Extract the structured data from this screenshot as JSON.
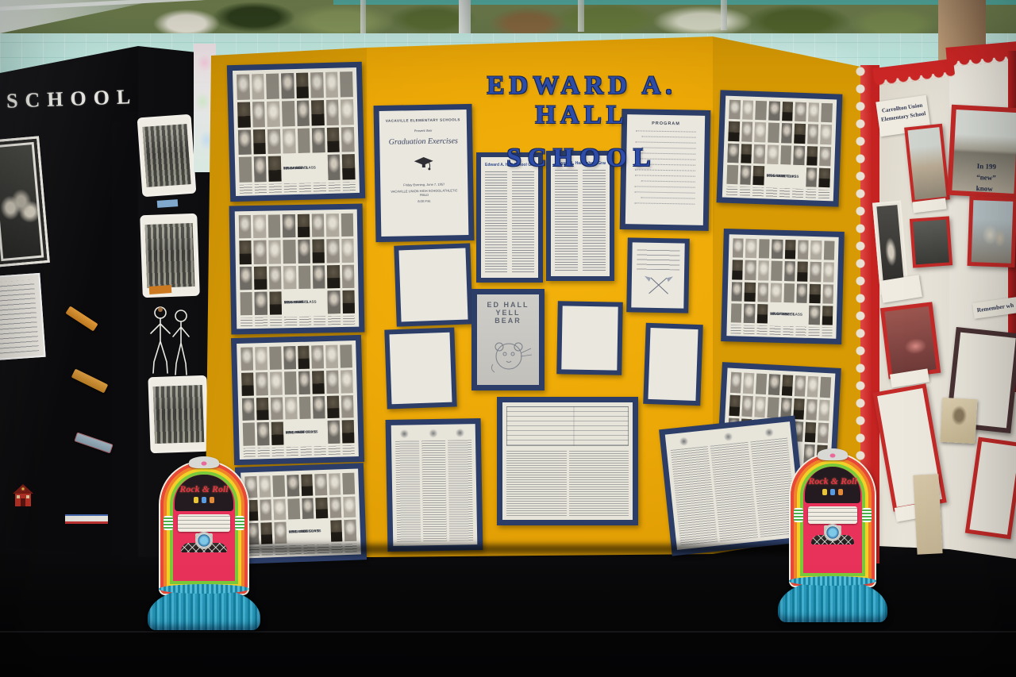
{
  "title": {
    "line1": "EDWARD A. HALL",
    "line2": "SCHOOL"
  },
  "left_board": {
    "heading": "SCHOOL"
  },
  "grad_program": {
    "header": "VACAVILLE ELEMENTARY SCHOOLS",
    "sub": "Present their",
    "script": "Graduation Exercises",
    "foot1": "Friday Evening, June 7, 1957",
    "foot2": "VACAVILLE UNION HIGH SCHOOL ATHLETIC FIELD",
    "foot3": "8:00 P.M."
  },
  "grad_lists": {
    "title": "Edward A. Hall School Graduates"
  },
  "program_page": {
    "title": "PROGRAM"
  },
  "bear_drawing": {
    "line1": "ED HALL",
    "line2": "YELL BEAR"
  },
  "right_board": {
    "school_label_1": "Carrollton Union",
    "school_label_2": "Elementary School",
    "new_text_1": "In 199",
    "new_text_2": "“new”",
    "new_text_3": "know",
    "remember_label": "Remember wh"
  },
  "jukebox": {
    "label": "Rock & Roll"
  },
  "class_sheets": [
    {
      "cap1": "MR. McDOW'S",
      "cap2": "5th GRADE CLASS",
      "cap3": "1956 - 1957",
      "rows": 4,
      "cols": 8,
      "capRow": 3,
      "capCol": 3,
      "capSpan": 3
    },
    {
      "cap1": "MISS ROWE'S",
      "cap2": "5th GRADE CLASS",
      "cap3": "1956 - 1957",
      "rows": 4,
      "cols": 8,
      "capRow": 3,
      "capCol": 3,
      "capSpan": 3
    },
    {
      "cap1": "MRS. REDFORD'S",
      "cap2": "4th GRADE CLASS",
      "cap3": "1956 - 1957",
      "rows": 4,
      "cols": 8,
      "capRow": 3,
      "capCol": 3,
      "capSpan": 3
    },
    {
      "cap1": "MRS. JOHNSON'S",
      "cap2": "6th GRADE CLASS",
      "cap3": "1956 - 1957",
      "rows": 3,
      "cols": 8,
      "capRow": 2,
      "capCol": 3,
      "capSpan": 3
    },
    {
      "cap1": "MISS STANTON'S",
      "cap2": "5th GRADE CLASS",
      "cap3": "1956 - 1957",
      "rows": 4,
      "cols": 8,
      "capRow": 3,
      "capCol": 3,
      "capSpan": 3
    },
    {
      "cap1": "MR. STEELE'S",
      "cap2": "6th GRADE CLASS",
      "cap3": "1956 - 1957",
      "rows": 4,
      "cols": 8,
      "capRow": 3,
      "capCol": 3,
      "capSpan": 3
    },
    {
      "cap1": "MRS. DAVIS'",
      "cap2": "6th GRADE CLASS",
      "cap3": "1956 - 1957",
      "rows": 4,
      "cols": 8,
      "capRow": 3,
      "capCol": 3,
      "capSpan": 3
    }
  ],
  "colors": {
    "board_yellow": "#EDAA0A",
    "mat_navy": "#2C3E68",
    "board_red": "#C92525",
    "wall_aqua": "#ABDFD5",
    "title_blue": "#2D4DA8",
    "jukebox_teal": "#2F9BB8"
  }
}
